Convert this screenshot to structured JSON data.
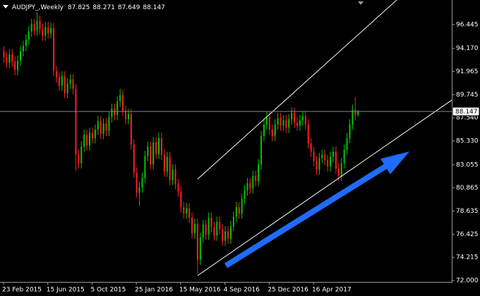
{
  "chart_data": {
    "type": "candlestick",
    "symbol": "AUDJPY_,Weekly",
    "up_color": "#00c800",
    "down_color": "#ff2020",
    "price_line_color": "#7a8a9a",
    "grid": false,
    "ylim": [
      71.87,
      98.79
    ],
    "yticks": [
      {
        "value": 72,
        "label": "72.000"
      },
      74.215,
      76.425,
      78.635,
      80.865,
      83.055,
      {
        "value": 85.33,
        "label": "85.330"
      },
      {
        "value": 87.54,
        "label": "87.540"
      },
      89.745,
      91.965,
      {
        "value": 94.17,
        "label": "94.170"
      },
      96.445
    ],
    "categories": [
      "23 Feb 2015",
      null,
      null,
      null,
      null,
      null,
      null,
      null,
      null,
      null,
      null,
      null,
      null,
      null,
      null,
      null,
      "15 Jun 2015",
      null,
      null,
      null,
      null,
      null,
      null,
      null,
      null,
      null,
      null,
      null,
      null,
      null,
      null,
      null,
      "5 Oct 2015",
      null,
      null,
      null,
      null,
      null,
      null,
      null,
      null,
      null,
      null,
      null,
      null,
      null,
      null,
      null,
      "25 Jan 2016",
      null,
      null,
      null,
      null,
      null,
      null,
      null,
      null,
      null,
      null,
      null,
      null,
      null,
      null,
      null,
      "15 May 2016",
      null,
      null,
      null,
      null,
      null,
      null,
      null,
      null,
      null,
      null,
      null,
      null,
      null,
      null,
      null,
      "4 Sep 2016",
      null,
      null,
      null,
      null,
      null,
      null,
      null,
      null,
      null,
      null,
      null,
      null,
      null,
      null,
      null,
      "25 Dec 2016",
      null,
      null,
      null,
      null,
      null,
      null,
      null,
      null,
      null,
      null,
      null,
      null,
      null,
      null,
      null,
      "16 Apr 2017",
      null,
      null,
      null,
      null,
      null,
      null,
      null,
      null,
      null,
      null,
      null,
      null,
      null,
      null,
      null,
      null
    ],
    "open": [
      93.9,
      93.3,
      92.8,
      93.6,
      92.9,
      92.1,
      93.0,
      93.9,
      94.4,
      95.0,
      95.8,
      96.5,
      95.9,
      96.8,
      96.0,
      95.4,
      96.2,
      95.6,
      96.1,
      92.0,
      91.4,
      90.6,
      91.5,
      89.9,
      90.8,
      91.2,
      90.3,
      84.0,
      83.2,
      84.8,
      85.9,
      84.9,
      86.1,
      85.6,
      86.4,
      87.2,
      86.0,
      87.0,
      86.3,
      87.6,
      88.4,
      87.8,
      89.1,
      89.7,
      88.2,
      87.4,
      87.9,
      85.0,
      82.3,
      80.4,
      80.9,
      81.8,
      83.9,
      84.8,
      83.1,
      85.2,
      84.1,
      85.6,
      84.0,
      82.4,
      83.8,
      81.6,
      82.6,
      81.2,
      80.5,
      79.0,
      78.4,
      78.9,
      78.0,
      76.5,
      77.4,
      74.0,
      76.1,
      77.3,
      76.4,
      78.0,
      77.1,
      76.3,
      77.6,
      76.9,
      75.8,
      76.7,
      76.0,
      77.2,
      78.1,
      79.0,
      78.4,
      79.8,
      80.6,
      81.3,
      80.8,
      82.0,
      81.5,
      83.1,
      85.8,
      86.9,
      87.6,
      86.4,
      85.8,
      86.9,
      87.5,
      86.8,
      87.3,
      86.6,
      87.4,
      88.0,
      87.1,
      86.8,
      87.3,
      87.7,
      86.9,
      85.1,
      84.3,
      83.4,
      82.6,
      83.7,
      84.0,
      83.5,
      82.9,
      83.8,
      84.3,
      82.7,
      82.0,
      83.2,
      84.5,
      85.6,
      86.9,
      88.3,
      87.825
    ],
    "high": [
      94.4,
      93.8,
      94.1,
      94.1,
      93.4,
      93.5,
      94.4,
      94.9,
      95.5,
      96.3,
      97.0,
      97.0,
      97.6,
      97.3,
      96.5,
      96.7,
      96.7,
      96.6,
      96.6,
      92.5,
      91.9,
      92.0,
      92.0,
      91.3,
      91.7,
      91.7,
      90.8,
      84.5,
      85.3,
      86.4,
      86.4,
      86.6,
      86.6,
      86.9,
      87.7,
      87.7,
      87.5,
      87.5,
      88.1,
      88.9,
      88.9,
      89.6,
      90.3,
      90.2,
      88.7,
      88.4,
      88.4,
      85.5,
      82.8,
      81.4,
      82.3,
      84.4,
      85.3,
      85.3,
      85.7,
      85.7,
      86.1,
      86.1,
      84.5,
      84.3,
      84.3,
      83.1,
      83.1,
      81.7,
      81.0,
      79.5,
      79.4,
      79.4,
      78.5,
      77.9,
      77.9,
      76.6,
      77.8,
      77.8,
      78.5,
      78.5,
      77.6,
      78.1,
      78.1,
      77.4,
      77.2,
      77.2,
      77.7,
      78.6,
      79.5,
      79.5,
      80.3,
      81.1,
      81.8,
      81.8,
      82.5,
      82.5,
      83.6,
      86.3,
      87.4,
      88.1,
      88.1,
      86.9,
      87.4,
      88.0,
      88.0,
      87.8,
      87.8,
      87.9,
      88.5,
      88.5,
      87.6,
      87.8,
      88.2,
      88.2,
      87.4,
      85.6,
      84.8,
      83.9,
      84.2,
      84.5,
      84.5,
      84.0,
      84.3,
      84.8,
      84.8,
      83.2,
      83.7,
      85.0,
      86.1,
      87.4,
      88.8,
      89.5,
      88.271
    ],
    "low": [
      92.8,
      92.3,
      92.3,
      92.4,
      91.6,
      91.6,
      92.5,
      93.4,
      93.9,
      94.5,
      95.3,
      95.4,
      95.4,
      95.5,
      94.9,
      94.9,
      95.1,
      95.1,
      91.5,
      90.9,
      90.1,
      90.1,
      89.4,
      89.4,
      90.3,
      89.8,
      82.5,
      82.7,
      82.7,
      84.3,
      84.4,
      84.4,
      85.1,
      85.1,
      85.9,
      85.5,
      85.5,
      85.8,
      85.8,
      87.1,
      87.3,
      87.3,
      88.6,
      87.7,
      86.9,
      86.9,
      84.5,
      81.8,
      79.9,
      79.1,
      80.4,
      81.3,
      83.4,
      82.6,
      82.6,
      83.6,
      83.6,
      83.5,
      81.9,
      81.9,
      81.1,
      81.1,
      80.7,
      80.0,
      78.5,
      77.9,
      77.9,
      77.5,
      76.0,
      76.0,
      72.6,
      73.5,
      75.6,
      75.9,
      75.9,
      76.6,
      75.8,
      75.8,
      76.4,
      75.3,
      75.3,
      75.5,
      75.5,
      76.7,
      77.6,
      77.9,
      77.9,
      79.3,
      80.1,
      80.3,
      80.3,
      81.0,
      81.0,
      82.6,
      85.3,
      86.4,
      85.9,
      85.3,
      85.3,
      86.4,
      86.3,
      86.3,
      86.1,
      86.1,
      86.9,
      86.6,
      86.3,
      86.3,
      86.8,
      86.4,
      84.6,
      83.8,
      82.9,
      82.1,
      82.1,
      83.2,
      83.0,
      82.4,
      82.4,
      83.3,
      82.2,
      81.5,
      81.5,
      82.7,
      84.0,
      85.1,
      86.4,
      87.3,
      87.649
    ],
    "close": [
      93.3,
      92.8,
      93.6,
      92.9,
      92.1,
      93.0,
      93.9,
      94.4,
      95.0,
      95.8,
      96.5,
      95.9,
      96.8,
      96.0,
      95.4,
      96.2,
      95.6,
      96.1,
      92.0,
      91.4,
      90.6,
      91.5,
      89.9,
      90.8,
      91.2,
      90.3,
      84.0,
      83.2,
      84.8,
      85.9,
      84.9,
      86.1,
      85.6,
      86.4,
      87.2,
      86.0,
      87.0,
      86.3,
      87.6,
      88.4,
      87.8,
      89.1,
      89.7,
      88.2,
      87.4,
      87.9,
      85.0,
      82.3,
      80.4,
      80.9,
      81.8,
      83.9,
      84.8,
      83.1,
      85.2,
      84.1,
      85.6,
      84.0,
      82.4,
      83.8,
      81.6,
      82.6,
      81.2,
      80.5,
      79.0,
      78.4,
      78.9,
      78.0,
      76.5,
      77.4,
      74.0,
      76.1,
      77.3,
      76.4,
      78.0,
      77.1,
      76.3,
      77.6,
      76.9,
      75.8,
      76.7,
      76.0,
      77.2,
      78.1,
      79.0,
      78.4,
      79.8,
      80.6,
      81.3,
      80.8,
      82.0,
      81.5,
      83.1,
      85.8,
      86.9,
      87.6,
      86.4,
      85.8,
      86.9,
      87.5,
      86.8,
      87.3,
      86.6,
      87.4,
      88.0,
      87.1,
      86.8,
      87.3,
      87.7,
      86.9,
      85.1,
      84.3,
      83.4,
      82.6,
      83.7,
      84.0,
      83.5,
      82.9,
      83.8,
      84.3,
      82.7,
      82.0,
      83.2,
      84.5,
      85.6,
      86.9,
      88.3,
      87.8,
      88.147
    ]
  }
}
